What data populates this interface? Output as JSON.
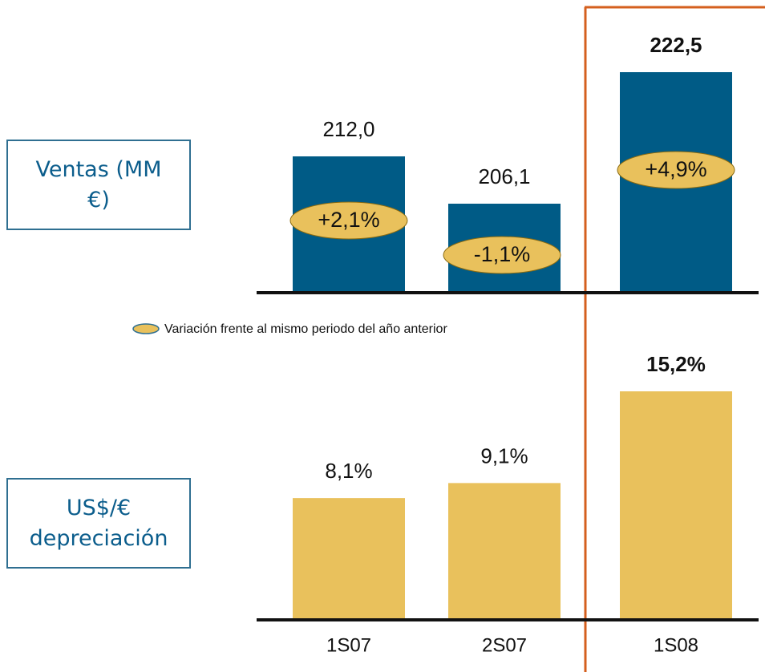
{
  "chart_data": [
    {
      "type": "bar",
      "title": "Ventas (MM €)",
      "values": [
        212.0,
        206.1,
        222.5
      ],
      "value_labels": [
        "212,0",
        "206,1",
        "222,5"
      ],
      "color": "#005b86",
      "ylim": [
        195,
        225
      ],
      "variation": {
        "values": [
          2.1,
          -1.1,
          4.9
        ],
        "value_labels": [
          "+2,1%",
          "-1,1%",
          "+4,9%"
        ],
        "color": "#e9c15c",
        "legend": "Variación frente al mismo periodo del año anterior"
      }
    },
    {
      "type": "bar",
      "title": "US$/€ depreciación",
      "categories": [
        "1S07",
        "2S07",
        "1S08"
      ],
      "values": [
        8.1,
        9.1,
        15.2
      ],
      "value_labels": [
        "8,1%",
        "9,1%",
        "15,2%"
      ],
      "color": "#e9c15c",
      "ylim": [
        0,
        16
      ]
    }
  ]
}
